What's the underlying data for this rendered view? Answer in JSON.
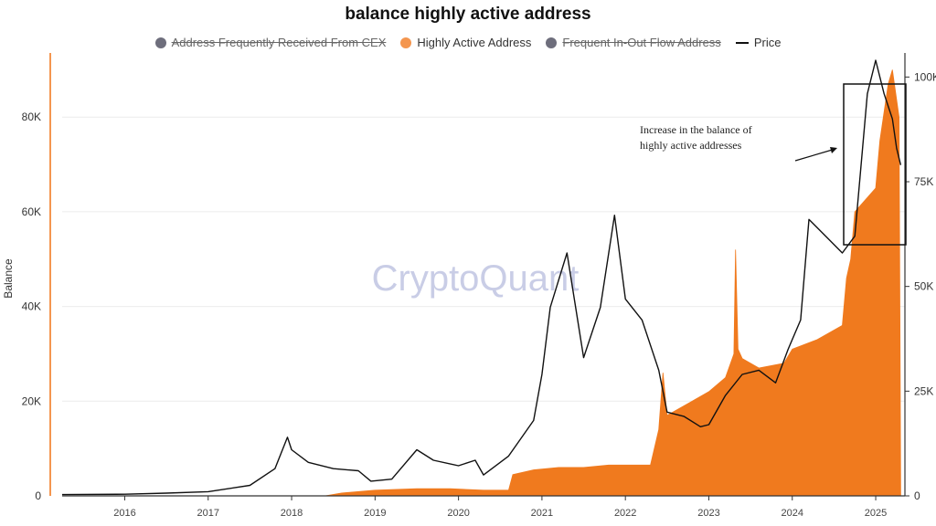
{
  "chart_data": {
    "type": "area",
    "title": "balance highly active address",
    "ylabel": "Balance",
    "watermark": "CryptoQuant",
    "legend": [
      {
        "label": "Address Frequently Received From CEX",
        "color": "#6e6e7c",
        "disabled": true,
        "marker": "dot"
      },
      {
        "label": "Highly Active Address",
        "color": "#f4964f",
        "disabled": false,
        "marker": "dot"
      },
      {
        "label": "Frequent In-Out Flow Address",
        "color": "#6e6e7c",
        "disabled": true,
        "marker": "dot"
      },
      {
        "label": "Price",
        "color": "#111111",
        "disabled": false,
        "marker": "line"
      }
    ],
    "x_ticks": [
      "2016",
      "2017",
      "2018",
      "2019",
      "2020",
      "2021",
      "2022",
      "2023",
      "2024",
      "2025"
    ],
    "x_range": [
      2015.25,
      2025.35
    ],
    "left_axis": {
      "ticks": [
        "0",
        "20K",
        "40K",
        "60K",
        "80K"
      ],
      "values": [
        0,
        20000,
        40000,
        60000,
        80000
      ],
      "range": [
        0,
        92000
      ]
    },
    "right_axis": {
      "ticks": [
        "0",
        "25K",
        "50K",
        "75K",
        "100K"
      ],
      "values": [
        0,
        25000,
        50000,
        75000,
        100000
      ],
      "range": [
        0,
        104000
      ]
    },
    "series": [
      {
        "name": "Highly Active Address",
        "axis": "left",
        "color": "#f07a1e",
        "x": [
          2015.25,
          2018.4,
          2018.6,
          2019.0,
          2019.5,
          2019.9,
          2020.3,
          2020.6,
          2020.65,
          2020.9,
          2021.2,
          2021.5,
          2021.8,
          2022.0,
          2022.3,
          2022.4,
          2022.45,
          2022.5,
          2022.8,
          2023.0,
          2023.2,
          2023.3,
          2023.32,
          2023.35,
          2023.4,
          2023.6,
          2023.9,
          2024.0,
          2024.3,
          2024.6,
          2024.65,
          2024.7,
          2024.75,
          2025.0,
          2025.05,
          2025.15,
          2025.2,
          2025.28,
          2025.3
        ],
        "y": [
          0,
          0,
          600,
          1200,
          1500,
          1500,
          1200,
          1200,
          4500,
          5500,
          6000,
          6000,
          6500,
          6500,
          6500,
          14000,
          26000,
          17000,
          20000,
          22000,
          25000,
          30000,
          52000,
          31000,
          29000,
          27000,
          28000,
          31000,
          33000,
          36000,
          46000,
          50000,
          60000,
          65000,
          75000,
          87000,
          90000,
          80000,
          0
        ]
      },
      {
        "name": "Price",
        "axis": "right",
        "color": "#111111",
        "x": [
          2015.25,
          2016.0,
          2016.5,
          2017.0,
          2017.5,
          2017.8,
          2017.95,
          2018.0,
          2018.2,
          2018.5,
          2018.8,
          2018.95,
          2019.2,
          2019.5,
          2019.7,
          2020.0,
          2020.2,
          2020.3,
          2020.6,
          2020.9,
          2021.0,
          2021.1,
          2021.3,
          2021.5,
          2021.7,
          2021.87,
          2022.0,
          2022.2,
          2022.4,
          2022.5,
          2022.7,
          2022.9,
          2023.0,
          2023.2,
          2023.4,
          2023.6,
          2023.8,
          2023.95,
          2024.1,
          2024.2,
          2024.4,
          2024.6,
          2024.75,
          2024.9,
          2025.0,
          2025.1,
          2025.2,
          2025.25,
          2025.3
        ],
        "y": [
          300,
          400,
          650,
          1000,
          2500,
          6500,
          14000,
          11000,
          8000,
          6500,
          6000,
          3500,
          4000,
          11000,
          8500,
          7200,
          8500,
          5000,
          9500,
          18000,
          29000,
          45000,
          58000,
          33000,
          45000,
          67000,
          47000,
          42000,
          30000,
          20000,
          19000,
          16500,
          17000,
          24000,
          29000,
          30000,
          27000,
          35000,
          42000,
          66000,
          62000,
          58000,
          62000,
          96000,
          104000,
          96000,
          90000,
          83000,
          79000
        ]
      }
    ],
    "annotation": {
      "lines": [
        "Increase in the balance of",
        "highly active addresses"
      ]
    }
  }
}
